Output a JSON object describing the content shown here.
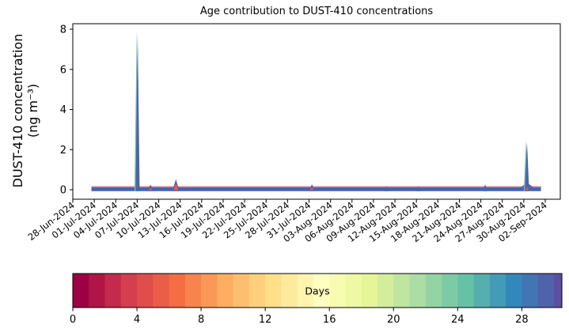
{
  "figure": {
    "title": "Age contribution to DUST-410 concentrations",
    "ylabel_line1": "DUST-410 concentration",
    "ylabel_line2": "(ng m⁻³)"
  },
  "chart_data": {
    "type": "area",
    "subtype": "stacked-area-by-age",
    "title": "Age contribution to DUST-410 concentrations",
    "xlabel": "",
    "ylabel": "DUST-410 concentration (ng m⁻³)",
    "grid": false,
    "y_axis": {
      "ticks": [
        0,
        2,
        4,
        6,
        8
      ],
      "lim": [
        -0.47,
        8.28
      ]
    },
    "x_axis": {
      "start_date": "28-Jun-2024",
      "end_date": "02-Sep-2024",
      "tick_interval_days": 3,
      "tick_labels": [
        "28-Jun-2024",
        "01-Jul-2024",
        "04-Jul-2024",
        "07-Jul-2024",
        "10-Jul-2024",
        "13-Jul-2024",
        "16-Jul-2024",
        "19-Jul-2024",
        "22-Jul-2024",
        "25-Jul-2024",
        "28-Jul-2024",
        "31-Jul-2024",
        "03-Aug-2024",
        "06-Aug-2024",
        "09-Aug-2024",
        "12-Aug-2024",
        "15-Aug-2024",
        "18-Aug-2024",
        "21-Aug-2024",
        "24-Aug-2024",
        "27-Aug-2024",
        "30-Aug-2024",
        "02-Sep-2024"
      ]
    },
    "baseline": {
      "start_day": 2.6,
      "end_day": 65.4,
      "top_level": 0.14,
      "band_bottom": -0.07
    },
    "peaks": [
      {
        "day": 9.06,
        "date": "07-Jul-2024",
        "height": 7.85,
        "half_width_days": 0.28,
        "teal_edge": true
      },
      {
        "day": 10.85,
        "date": "09-Jul-2024",
        "height": 0.25,
        "half_width_days": 0.45,
        "red_height": 0.08
      },
      {
        "day": 14.4,
        "date": "12-Jul-2024",
        "height": 0.52,
        "half_width_days": 0.5,
        "red_height": 0.32
      },
      {
        "day": 33.4,
        "date": "01-Aug-2024",
        "height": 0.28,
        "half_width_days": 0.4,
        "red_height": 0.12
      },
      {
        "day": 43.8,
        "date": "11-Aug-2024",
        "height": 0.18,
        "half_width_days": 0.25
      },
      {
        "day": 48.3,
        "date": "15-Aug-2024",
        "height": 0.18,
        "half_width_days": 0.25
      },
      {
        "day": 57.6,
        "date": "25-Aug-2024",
        "height": 0.26,
        "half_width_days": 0.35
      },
      {
        "day": 63.45,
        "date": "31-Aug-2024",
        "height": 2.38,
        "half_width_days": 0.3,
        "red_height": 0.15,
        "teal_edge": true,
        "base_bump": {
          "height": 0.34,
          "half_width_days": 0.85
        }
      }
    ],
    "colorbar": {
      "label": "Days",
      "ticks": [
        0,
        4,
        8,
        12,
        16,
        20,
        24,
        28
      ],
      "vmin": 0,
      "vmax": 30.5,
      "n_segments": 31,
      "colormap": "Spectral",
      "stops": [
        "#9e0142",
        "#d53e4f",
        "#f46d43",
        "#fdae61",
        "#fee08b",
        "#ffffbf",
        "#e6f598",
        "#abdda4",
        "#66c2a5",
        "#3288bd",
        "#5e4fa2"
      ]
    },
    "colors": {
      "band_blue": "#4a63ab",
      "top_line_pink": "#e59fb2",
      "peak_red": "#e85b41",
      "teal_edge": "#74b9a4",
      "axis": "#000000",
      "background": "#ffffff"
    }
  }
}
